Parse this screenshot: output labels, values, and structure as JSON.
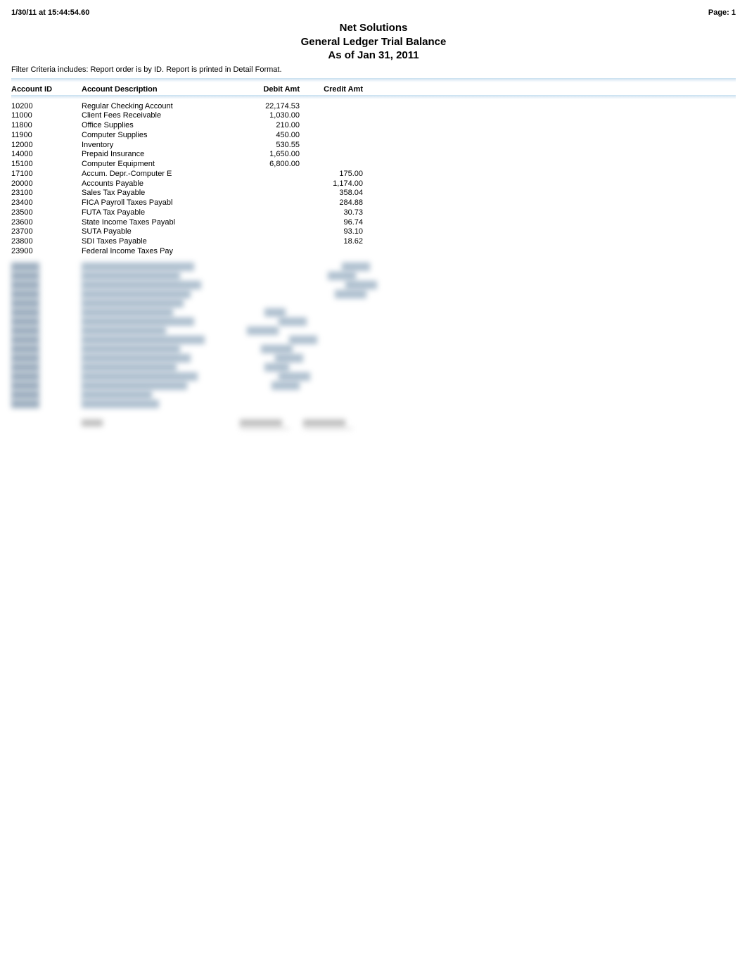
{
  "header": {
    "timestamp": "1/30/11 at 15:44:54.60",
    "page_label": "Page: 1"
  },
  "title": {
    "company": "Net Solutions",
    "report_name": "General Ledger Trial Balance",
    "as_of": "As of Jan 31, 2011"
  },
  "filter_text": "Filter Criteria includes: Report order is by ID. Report is printed in Detail Format.",
  "columns": {
    "account_id": "Account ID",
    "account_description": "Account Description",
    "debit_amt": "Debit Amt",
    "credit_amt": "Credit Amt"
  },
  "rows": [
    {
      "id": "10200",
      "desc": "Regular Checking Account",
      "debit": "22,174.53",
      "credit": ""
    },
    {
      "id": "11000",
      "desc": "Client Fees Receivable",
      "debit": "1,030.00",
      "credit": ""
    },
    {
      "id": "11800",
      "desc": "Office Supplies",
      "debit": "210.00",
      "credit": ""
    },
    {
      "id": "11900",
      "desc": "Computer Supplies",
      "debit": "450.00",
      "credit": ""
    },
    {
      "id": "12000",
      "desc": "Inventory",
      "debit": "530.55",
      "credit": ""
    },
    {
      "id": "14000",
      "desc": "Prepaid Insurance",
      "debit": "1,650.00",
      "credit": ""
    },
    {
      "id": "15100",
      "desc": "Computer Equipment",
      "debit": "6,800.00",
      "credit": ""
    },
    {
      "id": "17100",
      "desc": "Accum. Depr.-Computer E",
      "debit": "",
      "credit": "175.00"
    },
    {
      "id": "20000",
      "desc": "Accounts Payable",
      "debit": "",
      "credit": "1,174.00"
    },
    {
      "id": "23100",
      "desc": "Sales Tax Payable",
      "debit": "",
      "credit": "358.04"
    },
    {
      "id": "23400",
      "desc": "FICA Payroll Taxes Payabl",
      "debit": "",
      "credit": "284.88"
    },
    {
      "id": "23500",
      "desc": "FUTA Tax Payable",
      "debit": "",
      "credit": "30.73"
    },
    {
      "id": "23600",
      "desc": "State Income Taxes Payabl",
      "debit": "",
      "credit": "96.74"
    },
    {
      "id": "23700",
      "desc": "SUTA Payable",
      "debit": "",
      "credit": "93.10"
    },
    {
      "id": "23800",
      "desc": "SDI Taxes Payable",
      "debit": "",
      "credit": "18.62"
    },
    {
      "id": "23900",
      "desc": "Federal Income Taxes Pay",
      "debit": "",
      "credit": ""
    }
  ],
  "styling": {
    "background_color": "#ffffff",
    "text_color": "#000000",
    "header_font_size": 11,
    "title_font_size": 15,
    "body_font_size": 11,
    "hr_gradient_top": "#c8e0f0",
    "hr_gradient_bottom": "#ffffff"
  }
}
